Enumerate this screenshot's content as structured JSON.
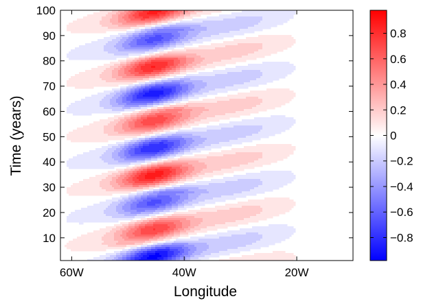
{
  "chart_data": {
    "type": "heatmap",
    "title": "",
    "xlabel": "Longitude",
    "ylabel": "Time (years)",
    "x_ticks": [
      {
        "lon": -60,
        "label": "60W"
      },
      {
        "lon": -40,
        "label": "40W"
      },
      {
        "lon": -20,
        "label": "20W"
      }
    ],
    "xlim": [
      -62,
      -10
    ],
    "y_ticks": [
      10,
      20,
      30,
      40,
      50,
      60,
      70,
      80,
      90,
      100
    ],
    "ylim": [
      1,
      100
    ],
    "colorbar": {
      "range": [
        -0.98,
        0.98
      ],
      "ticks": [
        {
          "value": 0.8,
          "label": "0.8"
        },
        {
          "value": 0.6,
          "label": "0.6"
        },
        {
          "value": 0.4,
          "label": "0.4"
        },
        {
          "value": 0.2,
          "label": "0.2"
        },
        {
          "value": 0,
          "label": "0"
        },
        {
          "value": -0.2,
          "label": "−0.2"
        },
        {
          "value": -0.4,
          "label": "−0.4"
        },
        {
          "value": -0.6,
          "label": "−0.6"
        },
        {
          "value": -0.8,
          "label": "−0.8"
        }
      ],
      "colors": {
        "negative": "#0000ff",
        "zero": "#ffffff",
        "positive": "#ff0000"
      }
    },
    "pattern": {
      "period_years": 21.5,
      "first_min_year": 2.5,
      "core_lon": -45.5,
      "core_lon_slope_per_year": 0.42,
      "secondary_lon": -31
    },
    "extrema": [
      {
        "year": 2.5,
        "lon": -47,
        "value": -0.95
      },
      {
        "year": 13,
        "lon": -46,
        "value": 0.72
      },
      {
        "year": 23,
        "lon": -46,
        "value": -0.65
      },
      {
        "year": 32,
        "lon": -47,
        "value": 0.88
      },
      {
        "year": 44,
        "lon": -45,
        "value": -0.82
      },
      {
        "year": 55,
        "lon": -46,
        "value": 0.7
      },
      {
        "year": 65,
        "lon": -45,
        "value": -0.88
      },
      {
        "year": 76,
        "lon": -46,
        "value": 0.82
      },
      {
        "year": 87,
        "lon": -46,
        "value": -0.66
      },
      {
        "year": 97,
        "lon": -46,
        "value": 0.85
      }
    ]
  }
}
